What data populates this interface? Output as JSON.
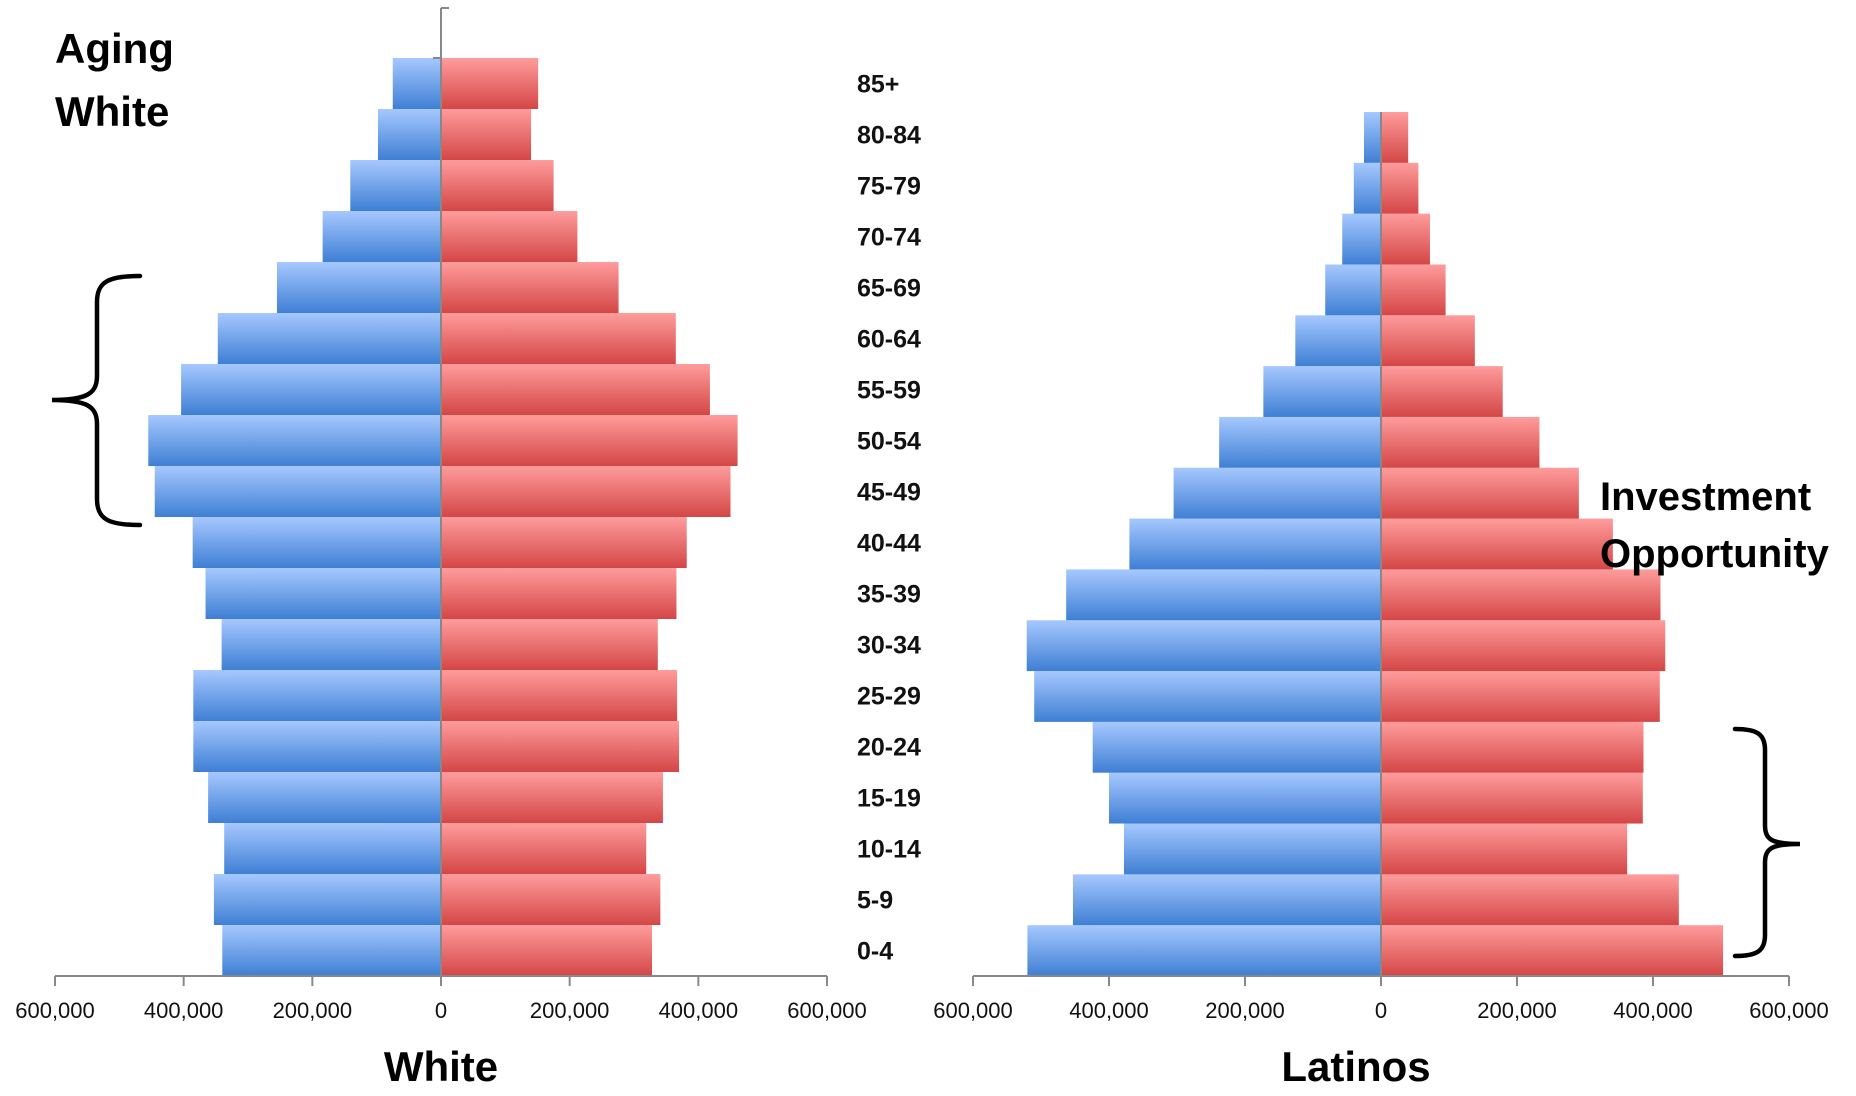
{
  "annotations": {
    "aging_line1": "Aging",
    "aging_line2": "White",
    "invest_line1": "Investment",
    "invest_line2": "Opportunity"
  },
  "colors": {
    "male_light": "#a6c8ff",
    "male_dark": "#3f7fd4",
    "female_light": "#ff9c9c",
    "female_dark": "#d44646",
    "axis": "#888888",
    "brace": "#000000"
  },
  "chart_data": [
    {
      "type": "bar",
      "subtype": "population-pyramid",
      "title": "White",
      "categories": [
        "0-4",
        "5-9",
        "10-14",
        "15-19",
        "20-24",
        "25-29",
        "30-34",
        "35-39",
        "40-44",
        "45-49",
        "50-54",
        "55-59",
        "60-64",
        "65-69",
        "70-74",
        "75-79",
        "80-84",
        "85+"
      ],
      "series": [
        {
          "side": "left",
          "values": [
            340000,
            353000,
            337000,
            362000,
            385000,
            385000,
            341000,
            366000,
            386000,
            445000,
            455000,
            404000,
            347000,
            255000,
            184000,
            141000,
            98000,
            75000
          ]
        },
        {
          "side": "right",
          "values": [
            328000,
            341000,
            319000,
            345000,
            370000,
            367000,
            337000,
            366000,
            382000,
            450000,
            461000,
            418000,
            365000,
            276000,
            212000,
            175000,
            140000,
            151000
          ]
        }
      ],
      "xlim": [
        -600000,
        600000
      ],
      "tick_labels": [
        "600,000",
        "400,000",
        "200,000",
        "0",
        "200,000",
        "400,000",
        "600,000"
      ],
      "grid": false,
      "legend": "none"
    },
    {
      "type": "bar",
      "subtype": "population-pyramid",
      "title": "Latinos",
      "categories": [
        "0-4",
        "5-9",
        "10-14",
        "15-19",
        "20-24",
        "25-29",
        "30-34",
        "35-39",
        "40-44",
        "45-49",
        "50-54",
        "55-59",
        "60-64",
        "65-69",
        "70-74",
        "75-79",
        "80-84"
      ],
      "series": [
        {
          "side": "left",
          "values": [
            520000,
            453000,
            378000,
            400000,
            424000,
            510000,
            521000,
            463000,
            370000,
            305000,
            238000,
            173000,
            126000,
            82000,
            57000,
            40000,
            25000
          ]
        },
        {
          "side": "right",
          "values": [
            503000,
            438000,
            362000,
            385000,
            386000,
            410000,
            418000,
            411000,
            341000,
            291000,
            233000,
            179000,
            138000,
            95000,
            72000,
            55000,
            40000
          ]
        }
      ],
      "xlim": [
        -600000,
        600000
      ],
      "tick_labels": [
        "600,000",
        "400,000",
        "200,000",
        "0",
        "200,000",
        "400,000",
        "600,000"
      ],
      "grid": false,
      "legend": "none"
    }
  ]
}
